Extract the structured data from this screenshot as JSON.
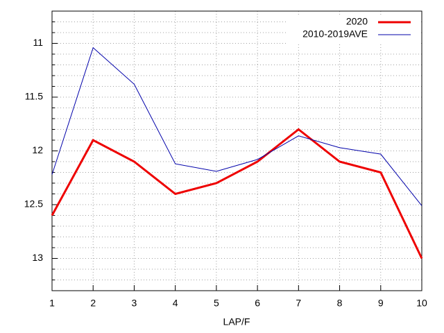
{
  "chart_data": {
    "type": "line",
    "x_label": "LAP/F",
    "x": [
      1,
      2,
      3,
      4,
      5,
      6,
      7,
      8,
      9,
      10
    ],
    "series": [
      {
        "name": "2020",
        "color": "#ee0000",
        "width": 3,
        "values": [
          12.6,
          11.9,
          12.1,
          12.4,
          12.3,
          12.1,
          11.8,
          12.1,
          12.2,
          13.0
        ]
      },
      {
        "name": "2010-2019AVE",
        "color": "#0000aa",
        "width": 1,
        "values": [
          12.22,
          11.04,
          11.38,
          12.12,
          12.19,
          12.08,
          11.86,
          11.97,
          12.03,
          12.51
        ]
      }
    ],
    "xlim": [
      1,
      10
    ],
    "xticks": [
      1,
      2,
      3,
      4,
      5,
      6,
      7,
      8,
      9,
      10
    ],
    "ylim": [
      10.7,
      13.3
    ],
    "y_reversed": true,
    "yticks": [
      11,
      11.5,
      12,
      12.5,
      13
    ],
    "yminorticks": [
      10.8,
      10.9,
      11.1,
      11.2,
      11.3,
      11.4,
      11.6,
      11.7,
      11.8,
      11.9,
      12.1,
      12.2,
      12.3,
      12.4,
      12.6,
      12.7,
      12.8,
      12.9,
      13.1,
      13.2
    ],
    "grid": true,
    "legend": "top-right"
  }
}
